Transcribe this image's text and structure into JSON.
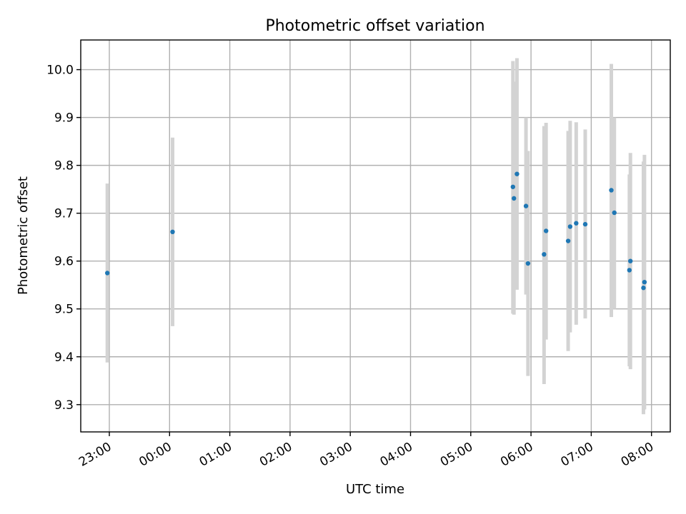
{
  "chart_data": {
    "type": "scatter",
    "title": "Photometric offset variation",
    "xlabel": "UTC time",
    "ylabel": "Photometric offset",
    "x_axis": {
      "scale": "time",
      "ticks": [
        "23:00",
        "00:00",
        "01:00",
        "02:00",
        "03:00",
        "04:00",
        "05:00",
        "06:00",
        "07:00",
        "08:00"
      ],
      "tick_hours_since_23": [
        0,
        1,
        2,
        3,
        4,
        5,
        6,
        7,
        8,
        9
      ],
      "tick_label_rotation_deg": 30
    },
    "y_axis": {
      "ticks": [
        "9.3",
        "9.4",
        "9.5",
        "9.6",
        "9.7",
        "9.8",
        "9.9",
        "10.0"
      ],
      "tick_values": [
        9.3,
        9.4,
        9.5,
        9.6,
        9.7,
        9.8,
        9.9,
        10.0
      ],
      "ylim": [
        9.243,
        10.062
      ]
    },
    "grid": true,
    "marker_color": "#1f77b4",
    "errorbar_color": "#d3d3d3",
    "series": [
      {
        "points": [
          {
            "time": "22:58",
            "y": 9.575,
            "ylow": 9.388,
            "yhigh": 9.762
          },
          {
            "time": "00:03",
            "y": 9.661,
            "ylow": 9.464,
            "yhigh": 9.858
          },
          {
            "time": "05:42",
            "y": 9.755,
            "ylow": 9.49,
            "yhigh": 10.018
          },
          {
            "time": "05:43",
            "y": 9.731,
            "ylow": 9.488,
            "yhigh": 9.975
          },
          {
            "time": "05:46",
            "y": 9.782,
            "ylow": 9.54,
            "yhigh": 10.024
          },
          {
            "time": "05:55",
            "y": 9.715,
            "ylow": 9.53,
            "yhigh": 9.9
          },
          {
            "time": "05:57",
            "y": 9.595,
            "ylow": 9.36,
            "yhigh": 9.83
          },
          {
            "time": "06:13",
            "y": 9.614,
            "ylow": 9.343,
            "yhigh": 9.882
          },
          {
            "time": "06:15",
            "y": 9.663,
            "ylow": 9.436,
            "yhigh": 9.889
          },
          {
            "time": "06:37",
            "y": 9.642,
            "ylow": 9.412,
            "yhigh": 9.872
          },
          {
            "time": "06:39",
            "y": 9.672,
            "ylow": 9.451,
            "yhigh": 9.893
          },
          {
            "time": "06:45",
            "y": 9.679,
            "ylow": 9.467,
            "yhigh": 9.89
          },
          {
            "time": "06:54",
            "y": 9.677,
            "ylow": 9.48,
            "yhigh": 9.875
          },
          {
            "time": "07:20",
            "y": 9.748,
            "ylow": 9.483,
            "yhigh": 10.012
          },
          {
            "time": "07:23",
            "y": 9.701,
            "ylow": 9.5,
            "yhigh": 9.9
          },
          {
            "time": "07:38",
            "y": 9.581,
            "ylow": 9.38,
            "yhigh": 9.781
          },
          {
            "time": "07:39",
            "y": 9.6,
            "ylow": 9.374,
            "yhigh": 9.826
          },
          {
            "time": "07:52",
            "y": 9.544,
            "ylow": 9.28,
            "yhigh": 9.808
          },
          {
            "time": "07:53",
            "y": 9.556,
            "ylow": 9.29,
            "yhigh": 9.822
          }
        ]
      }
    ]
  }
}
